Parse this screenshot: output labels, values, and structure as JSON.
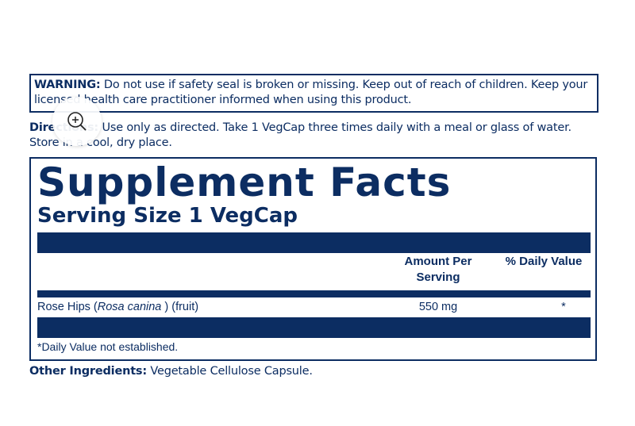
{
  "warning": {
    "label": "WARNING:",
    "text": "Do not use if safety seal is broken or missing. Keep out of reach of children. Keep your licensed health care practitioner informed when using this product."
  },
  "directions": {
    "label": "Directions:",
    "text": "Use only as directed. Take 1 VegCap three times daily with a meal or glass of water. Store in a cool, dry place."
  },
  "facts": {
    "title": "Supplement Facts",
    "serving_size": "Serving Size 1 VegCap",
    "headers": {
      "amount": "Amount Per Serving",
      "daily_value": "% Daily Value"
    },
    "rows": [
      {
        "name_before": "Rose Hips (",
        "name_italic": "Rosa canina",
        "name_after": " ) (fruit)",
        "amount": "550 mg",
        "daily_value": "*"
      }
    ],
    "footnote": "*Daily Value not established."
  },
  "other_ingredients": {
    "label": "Other Ingredients:",
    "text": "Vegetable Cellulose Capsule."
  }
}
